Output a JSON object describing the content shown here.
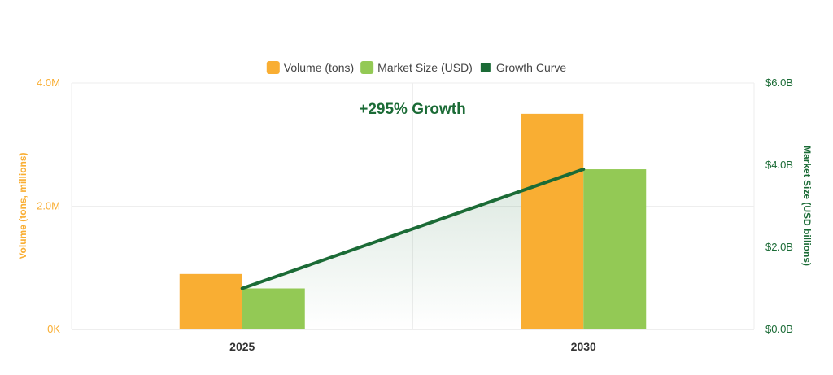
{
  "chart_data": {
    "type": "bar",
    "categories": [
      "2025",
      "2030"
    ],
    "series": [
      {
        "name": "Volume (tons)",
        "axis": "left",
        "kind": "bar",
        "color": "#F9AE33",
        "values": [
          900000,
          3500000
        ]
      },
      {
        "name": "Market Size (USD)",
        "axis": "right",
        "kind": "bar",
        "color": "#93C955",
        "values": [
          1.0,
          3.9
        ]
      },
      {
        "name": "Growth Curve",
        "axis": "right",
        "kind": "line",
        "color": "#1B6B36",
        "values": [
          1.0,
          3.9
        ]
      }
    ],
    "left_axis": {
      "title": "Volume (tons, millions)",
      "range": [
        0,
        4000000
      ],
      "ticks": [
        {
          "value": 0,
          "label": "0K"
        },
        {
          "value": 2000000,
          "label": "2.0M"
        },
        {
          "value": 4000000,
          "label": "4.0M"
        }
      ]
    },
    "right_axis": {
      "title": "Market Size (USD billions)",
      "range": [
        0,
        6
      ],
      "ticks": [
        {
          "value": 0,
          "label": "$0.0B"
        },
        {
          "value": 2,
          "label": "$2.0B"
        },
        {
          "value": 4,
          "label": "$4.0B"
        },
        {
          "value": 6,
          "label": "$6.0B"
        }
      ]
    },
    "annotation": "+295% Growth",
    "legend_position": "top-center",
    "grid": true
  }
}
